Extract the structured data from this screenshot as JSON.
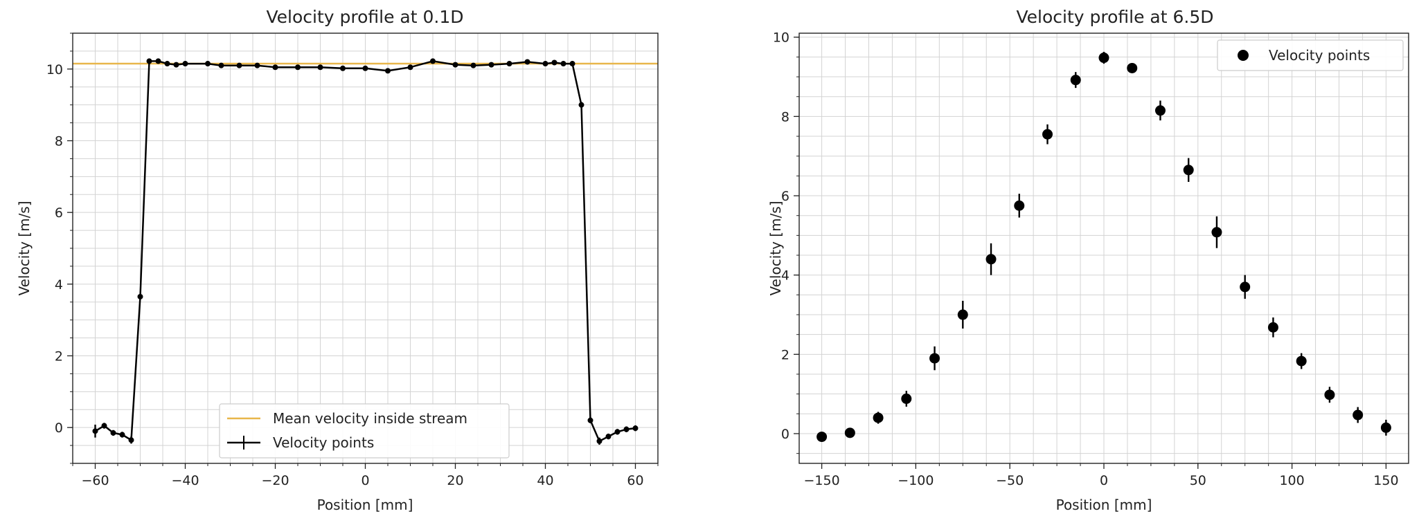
{
  "colors": {
    "mean_line": "#e8b64a",
    "points": "#000000",
    "grid": "#d3d3d3",
    "axes": "#222222"
  },
  "chart_data": [
    {
      "type": "line",
      "title": "Velocity profile at 0.1D",
      "xlabel": "Position [mm]",
      "ylabel": "Velocity [m/s]",
      "xlim": [
        -65,
        65
      ],
      "ylim": [
        -1,
        11
      ],
      "xticks": [
        -60,
        -40,
        -20,
        0,
        20,
        40,
        60
      ],
      "xtick_labels": [
        "−60",
        "−40",
        "−20",
        "0",
        "20",
        "40",
        "60"
      ],
      "yticks": [
        0,
        2,
        4,
        6,
        8,
        10
      ],
      "ytick_labels": [
        "0",
        "2",
        "4",
        "6",
        "8",
        "10"
      ],
      "grid": true,
      "minor_grid": true,
      "legend_position": "lower-center",
      "mean_line": {
        "name": "Mean velocity inside stream",
        "y": 10.15
      },
      "series": [
        {
          "name": "Velocity points",
          "marker": "dot",
          "connected": true,
          "x": [
            -60,
            -58,
            -56,
            -54,
            -52,
            -50,
            -48,
            -46,
            -44,
            -42,
            -40,
            -35,
            -32,
            -28,
            -24,
            -20,
            -15,
            -10,
            -5,
            0,
            5,
            10,
            15,
            20,
            24,
            28,
            32,
            36,
            40,
            42,
            44,
            46,
            48,
            50,
            52,
            54,
            56,
            58,
            60
          ],
          "y": [
            -0.1,
            0.05,
            -0.15,
            -0.2,
            -0.35,
            3.65,
            10.22,
            10.22,
            10.15,
            10.12,
            10.15,
            10.15,
            10.1,
            10.1,
            10.1,
            10.05,
            10.05,
            10.05,
            10.02,
            10.02,
            9.95,
            10.05,
            10.22,
            10.12,
            10.1,
            10.12,
            10.15,
            10.2,
            10.15,
            10.18,
            10.15,
            10.15,
            9.0,
            0.2,
            -0.38,
            -0.25,
            -0.12,
            -0.05,
            -0.02
          ],
          "yerr": [
            0.18,
            0.08,
            0.08,
            0.08,
            0.1,
            0.05,
            0.05,
            0.05,
            0.05,
            0.05,
            0.05,
            0.05,
            0.05,
            0.05,
            0.05,
            0.05,
            0.05,
            0.05,
            0.05,
            0.05,
            0.05,
            0.05,
            0.05,
            0.05,
            0.05,
            0.05,
            0.05,
            0.05,
            0.05,
            0.05,
            0.05,
            0.05,
            0.08,
            0.08,
            0.1,
            0.08,
            0.08,
            0.08,
            0.08
          ]
        }
      ]
    },
    {
      "type": "scatter",
      "title": "Velocity profile at 6.5D",
      "xlabel": "Position [mm]",
      "ylabel": "Velocity [m/s]",
      "xlim": [
        -162,
        162
      ],
      "ylim": [
        -0.75,
        10.1
      ],
      "xticks": [
        -150,
        -100,
        -50,
        0,
        50,
        100,
        150
      ],
      "xtick_labels": [
        "−150",
        "−100",
        "−50",
        "0",
        "50",
        "100",
        "150"
      ],
      "yticks": [
        0,
        2,
        4,
        6,
        8,
        10
      ],
      "ytick_labels": [
        "0",
        "2",
        "4",
        "6",
        "8",
        "10"
      ],
      "grid": true,
      "minor_grid": true,
      "legend_position": "top-right",
      "series": [
        {
          "name": "Velocity points",
          "marker": "dot",
          "connected": false,
          "x": [
            -150,
            -135,
            -120,
            -105,
            -90,
            -75,
            -60,
            -45,
            -30,
            -15,
            0,
            15,
            30,
            45,
            60,
            75,
            90,
            105,
            120,
            135,
            150
          ],
          "y": [
            -0.08,
            0.02,
            0.4,
            0.88,
            1.9,
            3.0,
            4.4,
            5.75,
            7.55,
            8.92,
            9.48,
            9.22,
            8.15,
            6.65,
            5.08,
            3.7,
            2.68,
            1.83,
            0.98,
            0.47,
            0.15
          ],
          "yerr": [
            0.12,
            0.1,
            0.15,
            0.2,
            0.3,
            0.35,
            0.4,
            0.3,
            0.25,
            0.2,
            0.15,
            0.12,
            0.25,
            0.3,
            0.4,
            0.3,
            0.25,
            0.2,
            0.2,
            0.2,
            0.2
          ]
        }
      ]
    }
  ]
}
